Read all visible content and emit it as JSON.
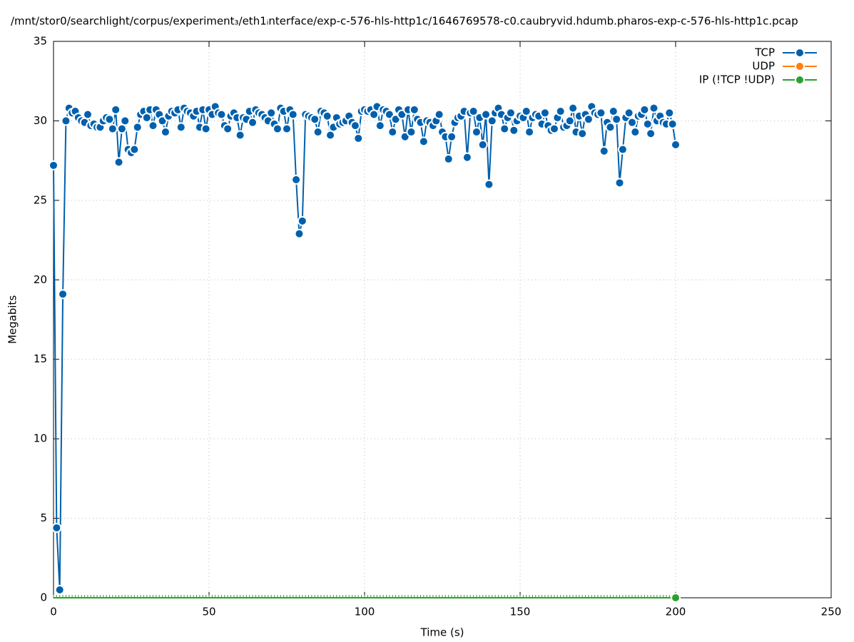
{
  "chart_data": {
    "type": "line",
    "title": "/mnt/stor0/searchlight/corpus/experiment₃/eth1ᵢnterface/exp-c-576-hls-http1c/1646769578-c0.caubryvid.hdumb.pharos-exp-c-576-hls-http1c.pcap",
    "x_label": "Time (s)",
    "y_label": "Megabits",
    "xlim": [
      0,
      250
    ],
    "xticks": [
      0,
      50,
      100,
      150,
      200,
      250
    ],
    "ylim": [
      0,
      35
    ],
    "yticks": [
      0,
      5,
      10,
      15,
      20,
      25,
      30,
      35
    ],
    "grid": true,
    "legend": "top-right",
    "series": [
      {
        "name": "TCP",
        "color": "#0060ad",
        "x": [
          0,
          1,
          2,
          3,
          4,
          5,
          6,
          7,
          8,
          9,
          10,
          11,
          12,
          13,
          14,
          15,
          16,
          17,
          18,
          19,
          20,
          21,
          22,
          23,
          24,
          25,
          26,
          27,
          28,
          29,
          30,
          31,
          32,
          33,
          34,
          35,
          36,
          37,
          38,
          39,
          40,
          41,
          42,
          43,
          44,
          45,
          46,
          47,
          48,
          49,
          50,
          51,
          52,
          53,
          54,
          55,
          56,
          57,
          58,
          59,
          60,
          61,
          62,
          63,
          64,
          65,
          66,
          67,
          68,
          69,
          70,
          71,
          72,
          73,
          74,
          75,
          76,
          77,
          78,
          79,
          80,
          81,
          82,
          83,
          84,
          85,
          86,
          87,
          88,
          89,
          90,
          91,
          92,
          93,
          94,
          95,
          96,
          97,
          98,
          99,
          100,
          101,
          102,
          103,
          104,
          105,
          106,
          107,
          108,
          109,
          110,
          111,
          112,
          113,
          114,
          115,
          116,
          117,
          118,
          119,
          120,
          121,
          122,
          123,
          124,
          125,
          126,
          127,
          128,
          129,
          130,
          131,
          132,
          133,
          134,
          135,
          136,
          137,
          138,
          139,
          140,
          141,
          142,
          143,
          144,
          145,
          146,
          147,
          148,
          149,
          150,
          151,
          152,
          153,
          154,
          155,
          156,
          157,
          158,
          159,
          160,
          161,
          162,
          163,
          164,
          165,
          166,
          167,
          168,
          169,
          170,
          171,
          172,
          173,
          174,
          175,
          176,
          177,
          178,
          179,
          180,
          181,
          182,
          183,
          184,
          185,
          186,
          187,
          188,
          189,
          190,
          191,
          192,
          193,
          194,
          195,
          196,
          197,
          198,
          199,
          200
        ],
        "values": [
          27.2,
          4.4,
          0.5,
          19.1,
          30.0,
          30.8,
          30.5,
          30.6,
          30.2,
          30.0,
          29.9,
          30.4,
          29.7,
          29.8,
          29.6,
          29.6,
          30.0,
          30.2,
          30.1,
          29.5,
          30.7,
          27.4,
          29.5,
          30.0,
          28.2,
          28.0,
          28.2,
          29.6,
          30.4,
          30.6,
          30.2,
          30.7,
          29.7,
          30.7,
          30.4,
          30.0,
          29.3,
          30.3,
          30.6,
          30.5,
          30.7,
          29.6,
          30.8,
          30.6,
          30.5,
          30.3,
          30.6,
          29.6,
          30.7,
          29.5,
          30.7,
          30.4,
          30.9,
          30.5,
          30.4,
          29.7,
          29.5,
          30.3,
          30.5,
          30.2,
          29.1,
          30.2,
          30.1,
          30.6,
          29.9,
          30.7,
          30.5,
          30.4,
          30.2,
          30.0,
          30.5,
          29.8,
          29.5,
          30.8,
          30.6,
          29.5,
          30.7,
          30.4,
          26.3,
          22.9,
          23.7,
          30.4,
          30.3,
          30.2,
          30.1,
          29.3,
          30.6,
          30.5,
          30.3,
          29.1,
          29.6,
          30.2,
          29.8,
          29.9,
          30.0,
          30.3,
          29.9,
          29.7,
          28.9,
          30.6,
          30.7,
          30.6,
          30.7,
          30.4,
          30.9,
          29.7,
          30.7,
          30.6,
          30.4,
          29.3,
          30.1,
          30.7,
          30.4,
          29.0,
          30.7,
          29.3,
          30.7,
          30.1,
          29.9,
          28.7,
          30.0,
          29.9,
          29.7,
          30.0,
          30.4,
          29.3,
          29.0,
          27.6,
          29.0,
          29.9,
          30.2,
          30.3,
          30.6,
          27.7,
          30.5,
          30.6,
          29.3,
          30.2,
          28.5,
          30.4,
          26.0,
          30.0,
          30.5,
          30.8,
          30.4,
          29.5,
          30.2,
          30.5,
          29.4,
          30.0,
          30.3,
          30.2,
          30.6,
          29.3,
          30.2,
          30.4,
          30.3,
          29.8,
          30.5,
          29.7,
          29.4,
          29.5,
          30.2,
          30.6,
          29.6,
          29.7,
          30.0,
          30.8,
          29.3,
          30.3,
          29.2,
          30.4,
          30.1,
          30.9,
          30.5,
          30.4,
          30.5,
          28.1,
          29.9,
          29.6,
          30.6,
          30.1,
          26.1,
          28.2,
          30.2,
          30.5,
          29.9,
          29.3,
          30.3,
          30.4,
          30.7,
          29.8,
          29.2,
          30.8,
          30.0,
          30.3,
          29.9,
          29.8,
          30.5,
          29.8,
          28.5
        ]
      },
      {
        "name": "UDP",
        "color": "#ff7f0e",
        "x": [],
        "values": []
      },
      {
        "name": "IP (!TCP  !UDP)",
        "color": "#2ca02c",
        "x": [
          0,
          1,
          2,
          3,
          4,
          5,
          6,
          7,
          8,
          9,
          10,
          11,
          12,
          13,
          14,
          15,
          16,
          17,
          18,
          19,
          20,
          21,
          22,
          23,
          24,
          25,
          26,
          27,
          28,
          29,
          30,
          31,
          32,
          33,
          34,
          35,
          36,
          37,
          38,
          39,
          40,
          41,
          42,
          43,
          44,
          45,
          46,
          47,
          48,
          49,
          50,
          51,
          52,
          53,
          54,
          55,
          56,
          57,
          58,
          59,
          60,
          61,
          62,
          63,
          64,
          65,
          66,
          67,
          68,
          69,
          70,
          71,
          72,
          73,
          74,
          75,
          76,
          77,
          78,
          79,
          80,
          81,
          82,
          83,
          84,
          85,
          86,
          87,
          88,
          89,
          90,
          91,
          92,
          93,
          94,
          95,
          96,
          97,
          98,
          99,
          100,
          101,
          102,
          103,
          104,
          105,
          106,
          107,
          108,
          109,
          110,
          111,
          112,
          113,
          114,
          115,
          116,
          117,
          118,
          119,
          120,
          121,
          122,
          123,
          124,
          125,
          126,
          127,
          128,
          129,
          130,
          131,
          132,
          133,
          134,
          135,
          136,
          137,
          138,
          139,
          140,
          141,
          142,
          143,
          144,
          145,
          146,
          147,
          148,
          149,
          150,
          151,
          152,
          153,
          154,
          155,
          156,
          157,
          158,
          159,
          160,
          161,
          162,
          163,
          164,
          165,
          166,
          167,
          168,
          169,
          170,
          171,
          172,
          173,
          174,
          175,
          176,
          177,
          178,
          179,
          180,
          181,
          182,
          183,
          184,
          185,
          186,
          187,
          188,
          189,
          190,
          191,
          192,
          193,
          194,
          195,
          196,
          197,
          198,
          199,
          200
        ],
        "values": [
          0,
          0,
          0,
          0,
          0,
          0,
          0,
          0,
          0,
          0,
          0,
          0,
          0,
          0,
          0,
          0,
          0,
          0,
          0,
          0,
          0,
          0,
          0,
          0,
          0,
          0,
          0,
          0,
          0,
          0,
          0,
          0,
          0,
          0,
          0,
          0,
          0,
          0,
          0,
          0,
          0,
          0,
          0,
          0,
          0,
          0,
          0,
          0,
          0,
          0,
          0,
          0,
          0,
          0,
          0,
          0,
          0,
          0,
          0,
          0,
          0,
          0,
          0,
          0,
          0,
          0,
          0,
          0,
          0,
          0,
          0,
          0,
          0,
          0,
          0,
          0,
          0,
          0,
          0,
          0,
          0,
          0,
          0,
          0,
          0,
          0,
          0,
          0,
          0,
          0,
          0,
          0,
          0,
          0,
          0,
          0,
          0,
          0,
          0,
          0,
          0,
          0,
          0,
          0,
          0,
          0,
          0,
          0,
          0,
          0,
          0,
          0,
          0,
          0,
          0,
          0,
          0,
          0,
          0,
          0,
          0,
          0,
          0,
          0,
          0,
          0,
          0,
          0,
          0,
          0,
          0,
          0,
          0,
          0,
          0,
          0,
          0,
          0,
          0,
          0,
          0,
          0,
          0,
          0,
          0,
          0,
          0,
          0,
          0,
          0,
          0,
          0,
          0,
          0,
          0,
          0,
          0,
          0,
          0,
          0,
          0,
          0,
          0,
          0,
          0,
          0,
          0,
          0,
          0,
          0,
          0,
          0,
          0,
          0,
          0,
          0,
          0,
          0,
          0,
          0,
          0,
          0,
          0,
          0,
          0,
          0,
          0,
          0,
          0,
          0,
          0,
          0,
          0,
          0,
          0,
          0,
          0,
          0,
          0,
          0,
          0
        ]
      }
    ]
  }
}
